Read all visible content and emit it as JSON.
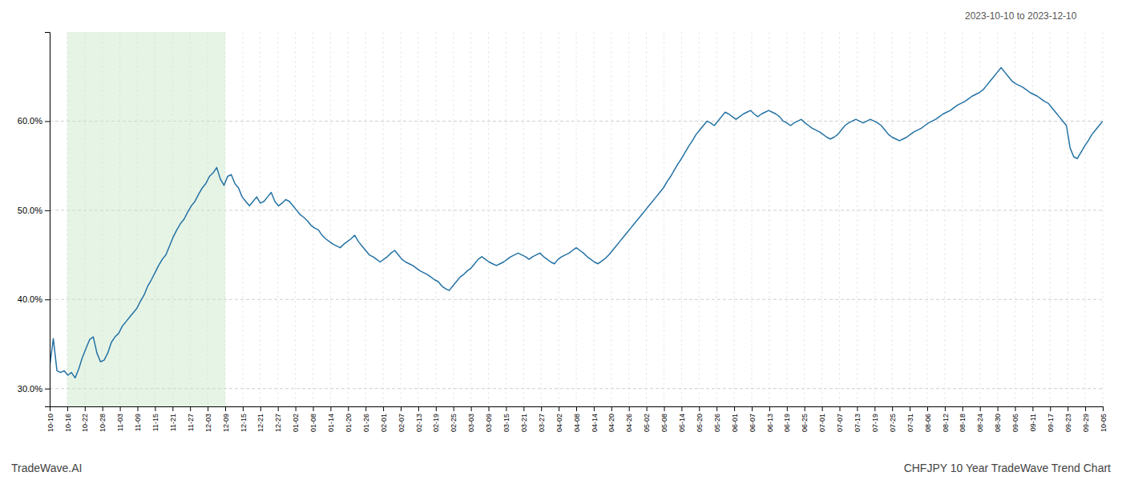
{
  "chart_data": {
    "type": "line",
    "title": "CHFJPY 10 Year TradeWave Trend Chart",
    "subtitle": "2023-10-10 to 2023-12-10",
    "annotations": [
      "TradeWave.AI"
    ],
    "color": "#2472a4",
    "grid": true,
    "shaded_span": {
      "start": 1,
      "end": 10,
      "color": "#c8e6c8"
    },
    "xlim": [
      0,
      60
    ],
    "xticks": [
      {
        "value": 0,
        "label": "10-10"
      },
      {
        "value": 1,
        "label": "10-16"
      },
      {
        "value": 2,
        "label": "10-22"
      },
      {
        "value": 3,
        "label": "10-28"
      },
      {
        "value": 4,
        "label": "11-03"
      },
      {
        "value": 5,
        "label": "11-09"
      },
      {
        "value": 6,
        "label": "11-15"
      },
      {
        "value": 7,
        "label": "11-21"
      },
      {
        "value": 8,
        "label": "11-27"
      },
      {
        "value": 9,
        "label": "12-03"
      },
      {
        "value": 10,
        "label": "12-09"
      },
      {
        "value": 11,
        "label": "12-15"
      },
      {
        "value": 12,
        "label": "12-21"
      },
      {
        "value": 13,
        "label": "12-27"
      },
      {
        "value": 14,
        "label": "01-02"
      },
      {
        "value": 15,
        "label": "01-08"
      },
      {
        "value": 16,
        "label": "01-14"
      },
      {
        "value": 17,
        "label": "01-20"
      },
      {
        "value": 18,
        "label": "01-26"
      },
      {
        "value": 19,
        "label": "02-01"
      },
      {
        "value": 20,
        "label": "02-07"
      },
      {
        "value": 21,
        "label": "02-13"
      },
      {
        "value": 22,
        "label": "02-19"
      },
      {
        "value": 23,
        "label": "02-25"
      },
      {
        "value": 24,
        "label": "03-03"
      },
      {
        "value": 25,
        "label": "03-09"
      },
      {
        "value": 26,
        "label": "03-15"
      },
      {
        "value": 27,
        "label": "03-21"
      },
      {
        "value": 28,
        "label": "03-27"
      },
      {
        "value": 29,
        "label": "04-02"
      },
      {
        "value": 30,
        "label": "04-08"
      },
      {
        "value": 31,
        "label": "04-14"
      },
      {
        "value": 32,
        "label": "04-20"
      },
      {
        "value": 33,
        "label": "04-26"
      },
      {
        "value": 34,
        "label": "05-02"
      },
      {
        "value": 35,
        "label": "05-08"
      },
      {
        "value": 36,
        "label": "05-14"
      },
      {
        "value": 37,
        "label": "05-20"
      },
      {
        "value": 38,
        "label": "05-26"
      },
      {
        "value": 39,
        "label": "06-01"
      },
      {
        "value": 40,
        "label": "06-07"
      },
      {
        "value": 41,
        "label": "06-13"
      },
      {
        "value": 42,
        "label": "06-19"
      },
      {
        "value": 43,
        "label": "06-25"
      },
      {
        "value": 44,
        "label": "07-01"
      },
      {
        "value": 45,
        "label": "07-07"
      },
      {
        "value": 46,
        "label": "07-13"
      },
      {
        "value": 47,
        "label": "07-19"
      },
      {
        "value": 48,
        "label": "07-25"
      },
      {
        "value": 49,
        "label": "07-31"
      },
      {
        "value": 50,
        "label": "08-06"
      },
      {
        "value": 51,
        "label": "08-12"
      },
      {
        "value": 52,
        "label": "08-18"
      },
      {
        "value": 53,
        "label": "08-24"
      },
      {
        "value": 54,
        "label": "08-30"
      },
      {
        "value": 55,
        "label": "09-05"
      },
      {
        "value": 56,
        "label": "09-11"
      },
      {
        "value": 57,
        "label": "09-17"
      },
      {
        "value": 58,
        "label": "09-23"
      },
      {
        "value": 59,
        "label": "09-29"
      },
      {
        "value": 60,
        "label": "10-05"
      }
    ],
    "ylim": [
      0.28,
      0.7
    ],
    "yticks": [
      {
        "value": 0.3,
        "label": "30.0%"
      },
      {
        "value": 0.4,
        "label": "40.0%"
      },
      {
        "value": 0.5,
        "label": "50.0%"
      },
      {
        "value": 0.6,
        "label": "60.0%"
      }
    ],
    "values": [
      0.325,
      0.356,
      0.32,
      0.318,
      0.32,
      0.315,
      0.318,
      0.312,
      0.322,
      0.335,
      0.345,
      0.355,
      0.358,
      0.34,
      0.33,
      0.332,
      0.34,
      0.352,
      0.358,
      0.362,
      0.37,
      0.375,
      0.38,
      0.385,
      0.39,
      0.398,
      0.405,
      0.415,
      0.422,
      0.43,
      0.438,
      0.445,
      0.45,
      0.46,
      0.47,
      0.478,
      0.485,
      0.49,
      0.498,
      0.505,
      0.51,
      0.518,
      0.525,
      0.53,
      0.538,
      0.542,
      0.548,
      0.535,
      0.528,
      0.538,
      0.54,
      0.53,
      0.525,
      0.515,
      0.51,
      0.505,
      0.51,
      0.515,
      0.508,
      0.51,
      0.515,
      0.52,
      0.51,
      0.505,
      0.508,
      0.512,
      0.51,
      0.505,
      0.5,
      0.495,
      0.492,
      0.488,
      0.483,
      0.48,
      0.478,
      0.472,
      0.468,
      0.465,
      0.462,
      0.46,
      0.458,
      0.462,
      0.465,
      0.468,
      0.472,
      0.465,
      0.46,
      0.455,
      0.45,
      0.448,
      0.445,
      0.442,
      0.445,
      0.448,
      0.452,
      0.455,
      0.45,
      0.445,
      0.442,
      0.44,
      0.438,
      0.435,
      0.432,
      0.43,
      0.428,
      0.425,
      0.422,
      0.42,
      0.415,
      0.412,
      0.41,
      0.415,
      0.42,
      0.425,
      0.428,
      0.432,
      0.435,
      0.44,
      0.445,
      0.448,
      0.445,
      0.442,
      0.44,
      0.438,
      0.44,
      0.442,
      0.445,
      0.448,
      0.45,
      0.452,
      0.45,
      0.448,
      0.445,
      0.448,
      0.45,
      0.452,
      0.448,
      0.445,
      0.442,
      0.44,
      0.445,
      0.448,
      0.45,
      0.452,
      0.455,
      0.458,
      0.455,
      0.452,
      0.448,
      0.445,
      0.442,
      0.44,
      0.443,
      0.446,
      0.45,
      0.455,
      0.46,
      0.465,
      0.47,
      0.475,
      0.48,
      0.485,
      0.49,
      0.495,
      0.5,
      0.505,
      0.51,
      0.515,
      0.52,
      0.525,
      0.532,
      0.538,
      0.545,
      0.552,
      0.558,
      0.565,
      0.572,
      0.578,
      0.585,
      0.59,
      0.595,
      0.6,
      0.598,
      0.595,
      0.6,
      0.605,
      0.61,
      0.608,
      0.605,
      0.602,
      0.605,
      0.608,
      0.61,
      0.612,
      0.608,
      0.605,
      0.608,
      0.61,
      0.612,
      0.61,
      0.608,
      0.605,
      0.6,
      0.598,
      0.595,
      0.598,
      0.6,
      0.602,
      0.598,
      0.595,
      0.592,
      0.59,
      0.588,
      0.585,
      0.582,
      0.58,
      0.582,
      0.585,
      0.59,
      0.595,
      0.598,
      0.6,
      0.602,
      0.6,
      0.598,
      0.6,
      0.602,
      0.6,
      0.598,
      0.595,
      0.59,
      0.585,
      0.582,
      0.58,
      0.578,
      0.58,
      0.582,
      0.585,
      0.588,
      0.59,
      0.592,
      0.595,
      0.598,
      0.6,
      0.602,
      0.605,
      0.608,
      0.61,
      0.612,
      0.615,
      0.618,
      0.62,
      0.622,
      0.625,
      0.628,
      0.63,
      0.632,
      0.635,
      0.64,
      0.645,
      0.65,
      0.655,
      0.66,
      0.655,
      0.65,
      0.645,
      0.642,
      0.64,
      0.638,
      0.635,
      0.632,
      0.63,
      0.628,
      0.625,
      0.622,
      0.62,
      0.615,
      0.61,
      0.605,
      0.6,
      0.595,
      0.57,
      0.56,
      0.558,
      0.565,
      0.572,
      0.578,
      0.585,
      0.59,
      0.595,
      0.6
    ]
  }
}
